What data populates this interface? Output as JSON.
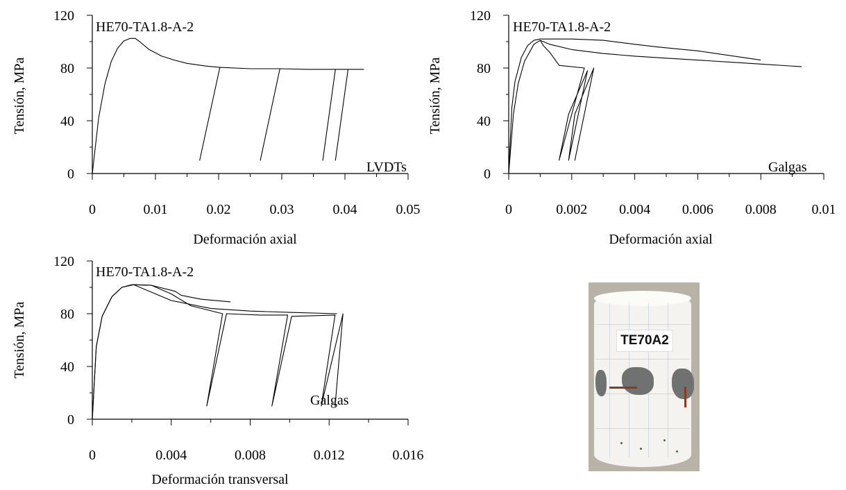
{
  "chart_data": [
    {
      "type": "line",
      "title": "HE70-TA1.8-A-2",
      "annotation": "LVDTs",
      "xlabel": "Deformación axial",
      "ylabel": "Tensión, MPa",
      "xlim": [
        0,
        0.05
      ],
      "ylim": [
        0,
        120
      ],
      "xticks": [
        "0",
        "0.01",
        "0.02",
        "0.03",
        "0.04",
        "0.05"
      ],
      "yticks": [
        "0",
        "40",
        "80",
        "120"
      ],
      "series": [
        {
          "x": [
            0,
            0.001,
            0.002,
            0.003,
            0.004,
            0.005,
            0.006,
            0.0068,
            0.0075,
            0.009,
            0.011,
            0.013,
            0.015,
            0.018,
            0.0202,
            0.017,
            0.0202,
            0.025,
            0.0297,
            0.0266,
            0.0297,
            0.034,
            0.0385,
            0.0365,
            0.0385,
            0.0405,
            0.0385,
            0.0405,
            0.043
          ],
          "y": [
            0,
            42,
            68,
            85,
            95,
            100.5,
            102.5,
            102.5,
            100,
            94,
            89,
            86,
            83.5,
            81.5,
            80.5,
            10,
            80.5,
            79.5,
            79.5,
            10,
            79.5,
            79,
            79,
            10,
            79,
            79,
            10,
            79,
            79
          ]
        }
      ]
    },
    {
      "type": "line",
      "title": "HE70-TA1.8-A-2",
      "annotation": "Galgas",
      "xlabel": "Deformación axial",
      "ylabel": "Tensión, MPa",
      "xlim": [
        0,
        0.01
      ],
      "ylim": [
        0,
        120
      ],
      "xticks": [
        "0",
        "0.002",
        "0.004",
        "0.006",
        "0.008",
        "0.01"
      ],
      "yticks": [
        "0",
        "40",
        "80",
        "120"
      ],
      "series": [
        {
          "x": [
            0,
            0.0001,
            0.0002,
            0.0004,
            0.0006,
            0.0008,
            0.001,
            0.002,
            0.003,
            0.004,
            0.0047,
            0.006,
            0.008
          ],
          "y": [
            0,
            50,
            70,
            88,
            97,
            101,
            102,
            102,
            101,
            98,
            96,
            93,
            86
          ]
        },
        {
          "x": [
            0,
            0.00015,
            0.0003,
            0.0005,
            0.0008,
            0.001,
            0.0011,
            0.0013,
            0.0016,
            0.0024,
            0.0016,
            0.0019,
            0.0025,
            0.0019,
            0.0021,
            0.0027,
            0.0021,
            0.0027
          ],
          "y": [
            0,
            45,
            68,
            85,
            98,
            101,
            97,
            92,
            82,
            80,
            10,
            45,
            78,
            10,
            45,
            80,
            10,
            80
          ]
        },
        {
          "x": [
            0.001,
            0.0013,
            0.002,
            0.003,
            0.004,
            0.005,
            0.006,
            0.007,
            0.008,
            0.0093
          ],
          "y": [
            101,
            98,
            94,
            91,
            89,
            87.5,
            86,
            84.5,
            83,
            81
          ]
        }
      ]
    },
    {
      "type": "line",
      "title": "HE70-TA1.8-A-2",
      "annotation": "Galgas",
      "xlabel": "Deformación transversal",
      "ylabel": "Tensión, MPa",
      "xlim": [
        0,
        0.016
      ],
      "ylim": [
        0,
        120
      ],
      "xticks": [
        "0",
        "0.004",
        "0.008",
        "0.012",
        "0.016"
      ],
      "yticks": [
        "0",
        "40",
        "80",
        "120"
      ],
      "series": [
        {
          "x": [
            0,
            0.0002,
            0.0005,
            0.001,
            0.0015,
            0.002,
            0.003,
            0.0042,
            0.0045,
            0.0055,
            0.007
          ],
          "y": [
            0,
            55,
            78,
            93,
            100,
            102,
            101.5,
            97,
            94,
            91,
            89
          ]
        },
        {
          "x": [
            0,
            0.0002,
            0.0005,
            0.001,
            0.0015,
            0.0021,
            0.003,
            0.004,
            0.005,
            0.0066,
            0.0058,
            0.0068,
            0.0068,
            0.0085,
            0.0099,
            0.0091,
            0.0101,
            0.0101,
            0.0123,
            0.0116,
            0.0127,
            0.0127,
            0.0123,
            0.0127
          ],
          "y": [
            0,
            55,
            78,
            93,
            100,
            102,
            101.5,
            95,
            86,
            80,
            10,
            80,
            80,
            79,
            79,
            10,
            78,
            78,
            79,
            10,
            80,
            80,
            10,
            80
          ]
        },
        {
          "x": [
            0.0021,
            0.004,
            0.006,
            0.008,
            0.01,
            0.0124
          ],
          "y": [
            102,
            90,
            84,
            82,
            81,
            80
          ]
        }
      ]
    }
  ],
  "photo": {
    "caption": "TE70A2"
  }
}
